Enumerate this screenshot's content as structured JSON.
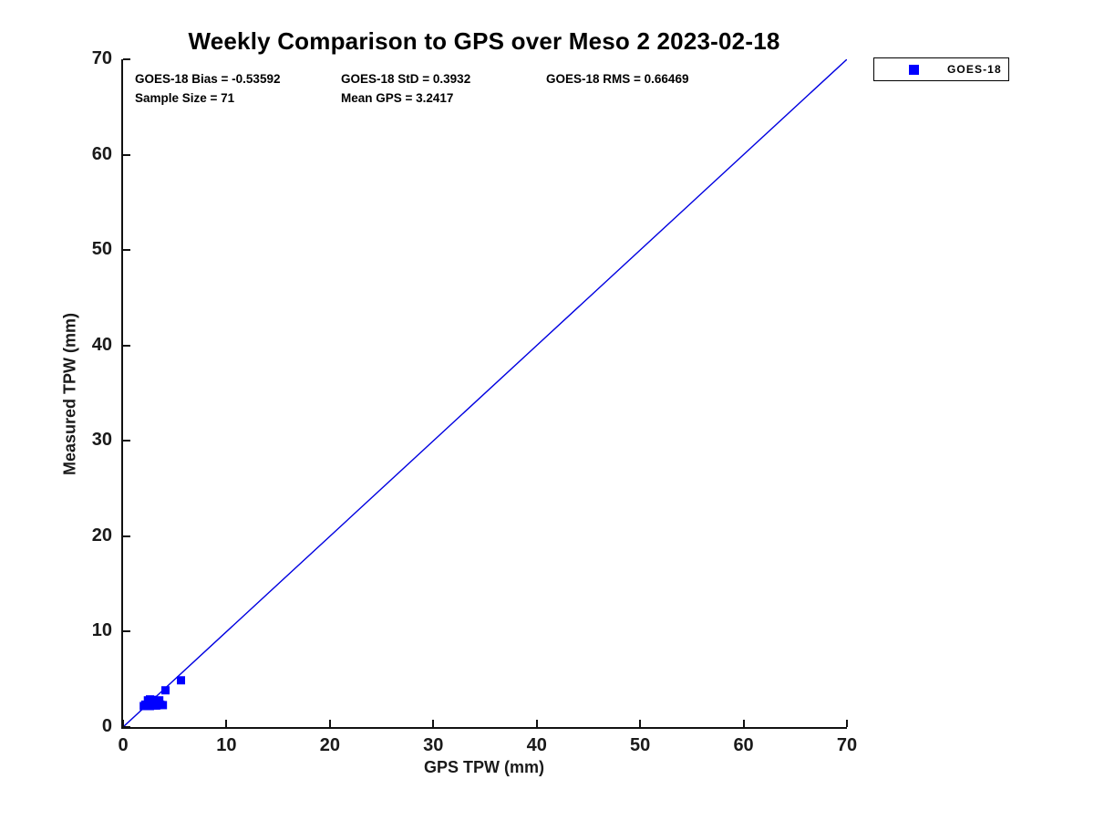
{
  "title": "Weekly Comparison to GPS over Meso 2 2023-02-18",
  "stats": {
    "bias": "GOES-18 Bias = -0.53592",
    "std": "GOES-18 StD = 0.3932",
    "rms": "GOES-18 RMS = 0.66469",
    "sample_size": "Sample Size = 71",
    "mean_gps": "Mean GPS = 3.2417"
  },
  "legend": {
    "label": "GOES-18",
    "marker_color": "#0000ff"
  },
  "colors": {
    "marker": "#0000ff",
    "reference_line": "#0000e0",
    "axis": "#111111",
    "tick_text": "#1a1a1a"
  },
  "chart_data": {
    "type": "scatter",
    "title": "Weekly Comparison to GPS over Meso 2 2023-02-18",
    "xlabel": "GPS TPW (mm)",
    "ylabel": "Measured TPW (mm)",
    "xlim": [
      0,
      70
    ],
    "ylim": [
      0,
      70
    ],
    "xticks": [
      0,
      10,
      20,
      30,
      40,
      50,
      60,
      70
    ],
    "yticks": [
      0,
      10,
      20,
      30,
      40,
      50,
      60,
      70
    ],
    "grid": false,
    "legend_position": "outside-top-right",
    "series": [
      {
        "name": "GOES-18",
        "marker": "square",
        "color": "#0000ff",
        "points": [
          [
            2.0,
            2.2
          ],
          [
            2.15,
            2.35
          ],
          [
            2.3,
            2.2
          ],
          [
            2.45,
            2.25
          ],
          [
            2.6,
            2.2
          ],
          [
            2.75,
            2.3
          ],
          [
            2.9,
            2.25
          ],
          [
            3.05,
            2.3
          ],
          [
            3.2,
            2.25
          ],
          [
            3.4,
            2.3
          ],
          [
            3.6,
            2.35
          ],
          [
            3.85,
            2.3
          ],
          [
            2.4,
            2.8
          ],
          [
            2.6,
            2.9
          ],
          [
            2.8,
            2.85
          ],
          [
            3.5,
            2.8
          ],
          [
            4.1,
            3.85
          ],
          [
            5.6,
            4.9
          ]
        ],
        "note": "71 overlapping samples clustered near 2-6 mm; positions approximate"
      }
    ],
    "reference_line": {
      "from": [
        0,
        0
      ],
      "to": [
        70,
        70
      ],
      "color": "#0000e0"
    },
    "stats": {
      "goes18_bias": -0.53592,
      "goes18_std": 0.3932,
      "goes18_rms": 0.66469,
      "sample_size": 71,
      "mean_gps": 3.2417
    }
  }
}
